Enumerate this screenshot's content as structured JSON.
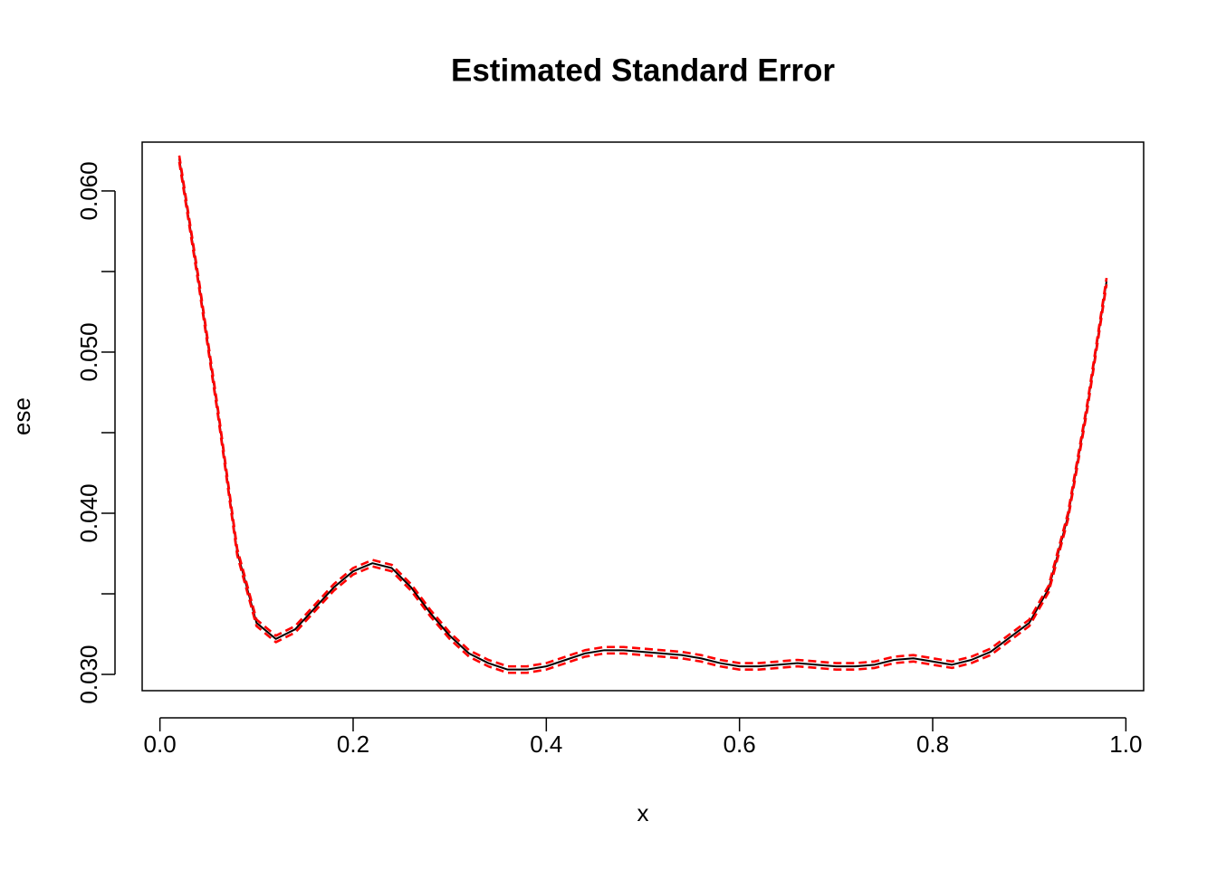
{
  "chart_data": {
    "type": "line",
    "title": "Estimated Standard Error",
    "xlabel": "x",
    "ylabel": "ese",
    "x": [
      0.02,
      0.04,
      0.06,
      0.08,
      0.1,
      0.12,
      0.14,
      0.16,
      0.18,
      0.2,
      0.22,
      0.24,
      0.26,
      0.28,
      0.3,
      0.32,
      0.34,
      0.36,
      0.38,
      0.4,
      0.42,
      0.44,
      0.46,
      0.48,
      0.5,
      0.52,
      0.54,
      0.56,
      0.58,
      0.6,
      0.62,
      0.64,
      0.66,
      0.68,
      0.7,
      0.72,
      0.74,
      0.76,
      0.78,
      0.8,
      0.82,
      0.84,
      0.86,
      0.88,
      0.9,
      0.92,
      0.94,
      0.96,
      0.98
    ],
    "series": [
      {
        "color": "#000000",
        "linestyle": "solid",
        "values": [
          0.062,
          0.0544,
          0.0463,
          0.0376,
          0.0332,
          0.0322,
          0.0328,
          0.0341,
          0.0354,
          0.0364,
          0.0369,
          0.0366,
          0.0354,
          0.0338,
          0.0324,
          0.0313,
          0.0307,
          0.0303,
          0.0303,
          0.0305,
          0.0309,
          0.0313,
          0.0315,
          0.0315,
          0.0314,
          0.0313,
          0.0312,
          0.031,
          0.0307,
          0.0305,
          0.0305,
          0.0306,
          0.0307,
          0.0306,
          0.0305,
          0.0305,
          0.0306,
          0.0309,
          0.031,
          0.0308,
          0.0306,
          0.0309,
          0.0314,
          0.0323,
          0.0332,
          0.0353,
          0.0398,
          0.0466,
          0.0544
        ]
      },
      {
        "color": "#ff0000",
        "linestyle": "dashed",
        "values": [
          0.0622,
          0.0546,
          0.0465,
          0.0378,
          0.0334,
          0.0324,
          0.033,
          0.0343,
          0.0356,
          0.0366,
          0.0371,
          0.0368,
          0.0356,
          0.034,
          0.0326,
          0.0315,
          0.0309,
          0.0305,
          0.0305,
          0.0307,
          0.0311,
          0.0315,
          0.0317,
          0.0317,
          0.0316,
          0.0315,
          0.0314,
          0.0312,
          0.0309,
          0.0307,
          0.0307,
          0.0308,
          0.0309,
          0.0308,
          0.0307,
          0.0307,
          0.0308,
          0.0311,
          0.0312,
          0.031,
          0.0308,
          0.0311,
          0.0316,
          0.0325,
          0.0334,
          0.0355,
          0.04,
          0.0468,
          0.0546
        ]
      },
      {
        "color": "#ff0000",
        "linestyle": "dashed",
        "values": [
          0.0618,
          0.0542,
          0.0461,
          0.0374,
          0.033,
          0.032,
          0.0326,
          0.0339,
          0.0352,
          0.0362,
          0.0367,
          0.0364,
          0.0352,
          0.0336,
          0.0322,
          0.0311,
          0.0305,
          0.0301,
          0.0301,
          0.0303,
          0.0307,
          0.0311,
          0.0313,
          0.0313,
          0.0312,
          0.0311,
          0.031,
          0.0308,
          0.0305,
          0.0303,
          0.0303,
          0.0304,
          0.0305,
          0.0304,
          0.0303,
          0.0303,
          0.0304,
          0.0307,
          0.0308,
          0.0306,
          0.0304,
          0.0307,
          0.0312,
          0.0321,
          0.033,
          0.0351,
          0.0396,
          0.0464,
          0.0542
        ]
      }
    ],
    "xlim": [
      -0.0184,
      1.0184
    ],
    "xticks": [
      {
        "value": 0,
        "label": "0.0"
      },
      0.2,
      0.4,
      0.6,
      0.8,
      {
        "value": 1,
        "label": "1.0"
      }
    ],
    "ylim": [
      0.02899,
      0.06303
    ],
    "yticks": [
      {
        "value": 0.03,
        "label": "0.030"
      },
      {
        "value": 0.035,
        "label": null
      },
      {
        "value": 0.04,
        "label": "0.040"
      },
      {
        "value": 0.045,
        "label": null
      },
      {
        "value": 0.05,
        "label": "0.050"
      },
      {
        "value": 0.055,
        "label": null
      },
      {
        "value": 0.06,
        "label": "0.060"
      }
    ],
    "grid": false
  }
}
